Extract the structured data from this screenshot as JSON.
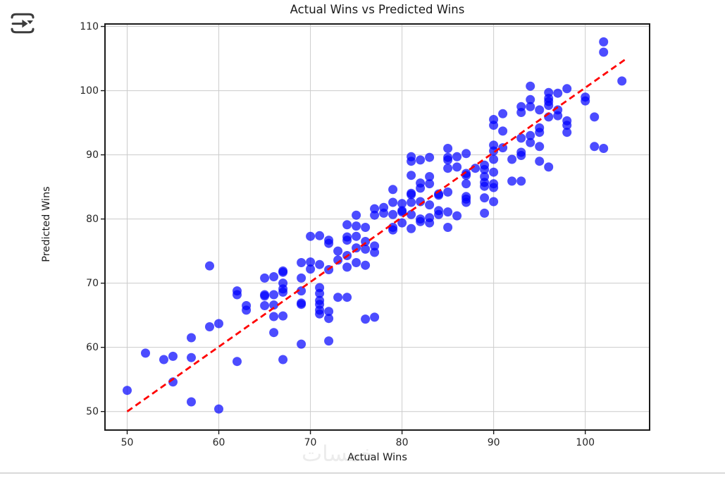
{
  "window": {
    "icon": "export-arrow-icon",
    "watermark_text": "خمسات",
    "watermark_color": "#ececec",
    "divider_color": "#d9d9d9"
  },
  "chart_data": {
    "type": "scatter",
    "title": "Actual Wins vs Predicted Wins",
    "xlabel": "Actual Wins",
    "ylabel": "Predicted Wins",
    "xlim": [
      47.5,
      107.1
    ],
    "ylim": [
      47.0,
      110.5
    ],
    "xticks": [
      50,
      60,
      70,
      80,
      90,
      100
    ],
    "yticks": [
      50,
      60,
      70,
      80,
      90,
      100,
      110
    ],
    "grid": true,
    "grid_color": "#cccccc",
    "spine_color": "#1a1a1a",
    "legend": "none",
    "series": [
      {
        "name": "predicted-vs-actual-points",
        "kind": "scatter",
        "color": "#0000ff",
        "opacity": 0.7,
        "marker_radius": 6.5,
        "points": [
          [
            50,
            53.3
          ],
          [
            52,
            59.1
          ],
          [
            54,
            58.1
          ],
          [
            55,
            58.6
          ],
          [
            55,
            54.6
          ],
          [
            57,
            61.5
          ],
          [
            57,
            58.4
          ],
          [
            57,
            51.5
          ],
          [
            59,
            63.2
          ],
          [
            59,
            72.7
          ],
          [
            60,
            63.7
          ],
          [
            60,
            50.4
          ],
          [
            62,
            57.8
          ],
          [
            62,
            68.2
          ],
          [
            62,
            68.8
          ],
          [
            63,
            66.5
          ],
          [
            63,
            65.8
          ],
          [
            65,
            66.5
          ],
          [
            65,
            68.2
          ],
          [
            66,
            64.8
          ],
          [
            66,
            62.3
          ],
          [
            67,
            64.9
          ],
          [
            67,
            58.1
          ],
          [
            65,
            70.8
          ],
          [
            66,
            71.0
          ],
          [
            67,
            71.7
          ],
          [
            67,
            71.9
          ],
          [
            67,
            70.0
          ],
          [
            67,
            69.1
          ],
          [
            67,
            68.6
          ],
          [
            66,
            68.2
          ],
          [
            65,
            68.0
          ],
          [
            66,
            66.6
          ],
          [
            69,
            73.2
          ],
          [
            70,
            73.3
          ],
          [
            70,
            72.2
          ],
          [
            69,
            70.8
          ],
          [
            69,
            68.8
          ],
          [
            69,
            66.9
          ],
          [
            71,
            69.3
          ],
          [
            71,
            68.4
          ],
          [
            71,
            66.7
          ],
          [
            71,
            65.8
          ],
          [
            69,
            66.7
          ],
          [
            69,
            60.5
          ],
          [
            71,
            67.3
          ],
          [
            71,
            65.2
          ],
          [
            72,
            65.6
          ],
          [
            72,
            64.5
          ],
          [
            72,
            61.0
          ],
          [
            73,
            67.8
          ],
          [
            74,
            67.8
          ],
          [
            76,
            64.4
          ],
          [
            77,
            64.7
          ],
          [
            70,
            77.3
          ],
          [
            71,
            77.4
          ],
          [
            72,
            76.7
          ],
          [
            72,
            76.2
          ],
          [
            74,
            77.2
          ],
          [
            74,
            76.7
          ],
          [
            75,
            77.3
          ],
          [
            75,
            75.5
          ],
          [
            73,
            75.0
          ],
          [
            73,
            73.6
          ],
          [
            74,
            74.3
          ],
          [
            75,
            73.2
          ],
          [
            76,
            76.5
          ],
          [
            76,
            75.3
          ],
          [
            77,
            75.8
          ],
          [
            71,
            72.9
          ],
          [
            72,
            72.1
          ],
          [
            74,
            72.5
          ],
          [
            76,
            72.8
          ],
          [
            77,
            74.8
          ],
          [
            75,
            80.6
          ],
          [
            75,
            78.9
          ],
          [
            76,
            78.7
          ],
          [
            74,
            79.1
          ],
          [
            77,
            81.6
          ],
          [
            78,
            81.8
          ],
          [
            78,
            80.9
          ],
          [
            77,
            80.6
          ],
          [
            79,
            80.7
          ],
          [
            80,
            81.3
          ],
          [
            80,
            81.1
          ],
          [
            81,
            80.7
          ],
          [
            82,
            80.0
          ],
          [
            83,
            80.2
          ],
          [
            83,
            79.4
          ],
          [
            84,
            80.7
          ],
          [
            85,
            78.7
          ],
          [
            79,
            78.7
          ],
          [
            79,
            78.3
          ],
          [
            80,
            79.4
          ],
          [
            81,
            78.5
          ],
          [
            82,
            79.6
          ],
          [
            84,
            81.3
          ],
          [
            85,
            81.1
          ],
          [
            86,
            80.5
          ],
          [
            79,
            84.6
          ],
          [
            82,
            84.8
          ],
          [
            81,
            84.0
          ],
          [
            81,
            83.8
          ],
          [
            84,
            83.7
          ],
          [
            84,
            83.9
          ],
          [
            85,
            84.2
          ],
          [
            79,
            82.6
          ],
          [
            80,
            82.4
          ],
          [
            81,
            82.6
          ],
          [
            82,
            82.7
          ],
          [
            83,
            82.2
          ],
          [
            87,
            83.5
          ],
          [
            87,
            82.6
          ],
          [
            81,
            86.8
          ],
          [
            83,
            86.6
          ],
          [
            87,
            86.8
          ],
          [
            83,
            85.5
          ],
          [
            82,
            85.6
          ],
          [
            81,
            89.0
          ],
          [
            82,
            89.2
          ],
          [
            85,
            89.2
          ],
          [
            86,
            88.1
          ],
          [
            85,
            87.9
          ],
          [
            88,
            87.9
          ],
          [
            89,
            88.4
          ],
          [
            89,
            87.7
          ],
          [
            90,
            87.3
          ],
          [
            87,
            87.1
          ],
          [
            89,
            86.6
          ],
          [
            87,
            85.5
          ],
          [
            89,
            85.7
          ],
          [
            89,
            85.1
          ],
          [
            90,
            85.5
          ],
          [
            90,
            84.9
          ],
          [
            87,
            83.1
          ],
          [
            89,
            83.3
          ],
          [
            90,
            82.7
          ],
          [
            89,
            80.9
          ],
          [
            92,
            85.9
          ],
          [
            93,
            85.9
          ],
          [
            95,
            89.0
          ],
          [
            96,
            88.1
          ],
          [
            92,
            89.3
          ],
          [
            90,
            89.3
          ],
          [
            85,
            91.0
          ],
          [
            81,
            89.7
          ],
          [
            83,
            89.6
          ],
          [
            85,
            89.6
          ],
          [
            86,
            89.7
          ],
          [
            87,
            90.2
          ],
          [
            102,
            107.6
          ],
          [
            102,
            106.0
          ],
          [
            104,
            101.5
          ],
          [
            94,
            100.7
          ],
          [
            98,
            100.3
          ],
          [
            96,
            99.7
          ],
          [
            97,
            99.6
          ],
          [
            94,
            98.6
          ],
          [
            96,
            98.8
          ],
          [
            96,
            98.3
          ],
          [
            96,
            97.7
          ],
          [
            100,
            99.0
          ],
          [
            100,
            98.4
          ],
          [
            94,
            97.5
          ],
          [
            93,
            97.5
          ],
          [
            93,
            96.6
          ],
          [
            91,
            96.4
          ],
          [
            95,
            97.0
          ],
          [
            97,
            97.0
          ],
          [
            97,
            96.1
          ],
          [
            96,
            95.9
          ],
          [
            90,
            95.5
          ],
          [
            90,
            94.6
          ],
          [
            98,
            95.3
          ],
          [
            98,
            94.6
          ],
          [
            101,
            95.9
          ],
          [
            91,
            93.7
          ],
          [
            95,
            94.2
          ],
          [
            95,
            93.5
          ],
          [
            98,
            93.5
          ],
          [
            93,
            92.6
          ],
          [
            94,
            93.0
          ],
          [
            94,
            91.9
          ],
          [
            95,
            91.3
          ],
          [
            90,
            91.5
          ],
          [
            90,
            90.6
          ],
          [
            91,
            91.1
          ],
          [
            93,
            89.9
          ],
          [
            93,
            90.4
          ],
          [
            101,
            91.3
          ],
          [
            102,
            91.0
          ]
        ]
      },
      {
        "name": "identity-reference-line",
        "kind": "line",
        "style": "dashed",
        "color": "#ff0000",
        "width": 2.8,
        "x": [
          50,
          104.5
        ],
        "y": [
          50,
          105.0
        ]
      }
    ]
  }
}
